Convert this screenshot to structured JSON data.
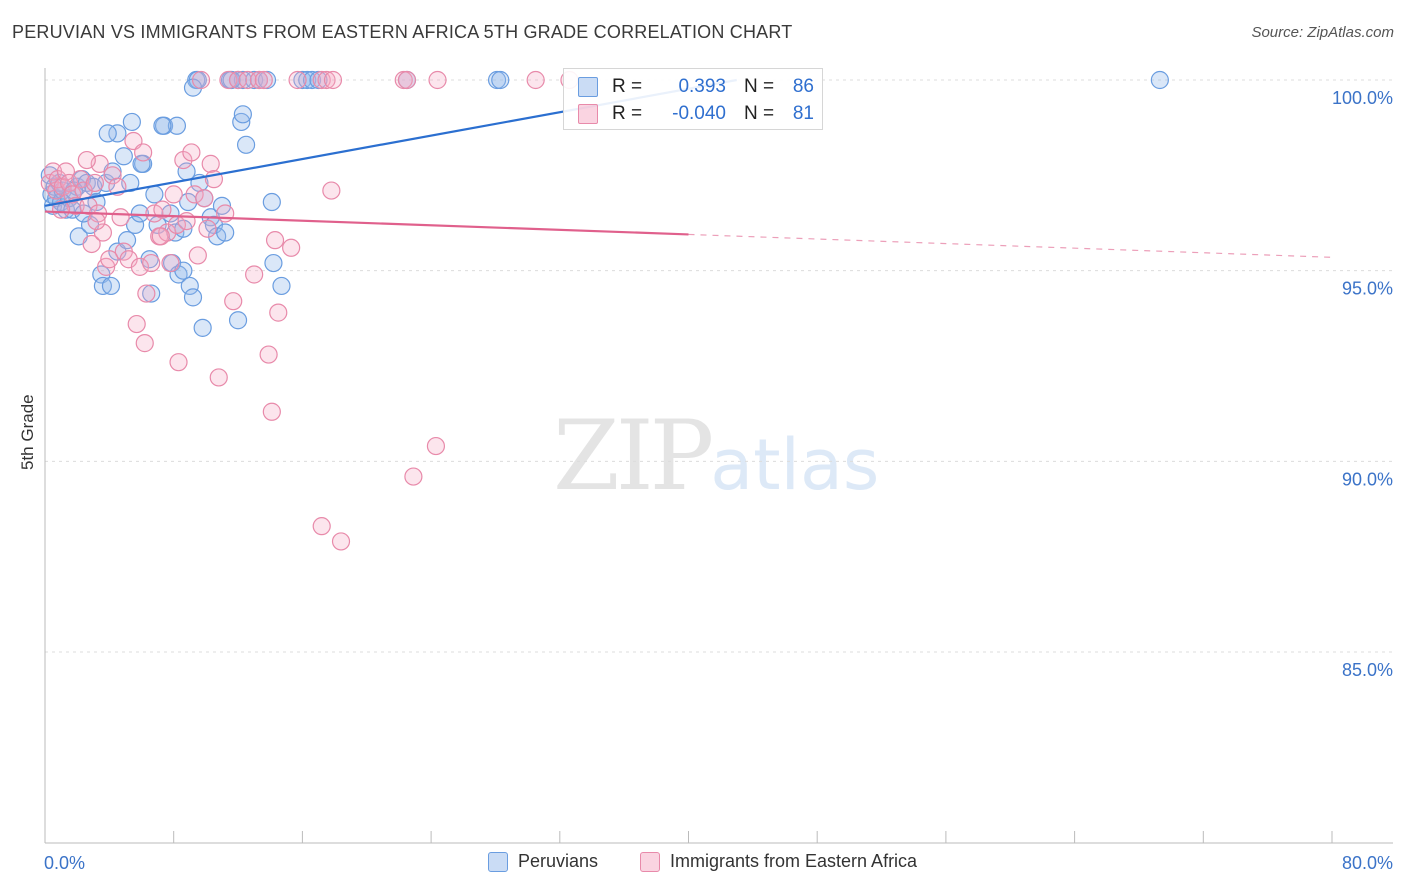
{
  "title": "PERUVIAN VS IMMIGRANTS FROM EASTERN AFRICA 5TH GRADE CORRELATION CHART",
  "source": "Source: ZipAtlas.com",
  "colors": {
    "blue": "#6a9de0",
    "blue_fill": "rgba(150,185,235,0.35)",
    "blue_line": "#2b6fd0",
    "pink": "#e88aaa",
    "pink_fill": "rgba(245,170,195,0.3)",
    "pink_line": "#e0608c",
    "axis_text": "#3b73c8"
  },
  "legend_stats": [
    {
      "r_label": "R =",
      "r_value": "0.393",
      "n_label": "N =",
      "n_value": "86"
    },
    {
      "r_label": "R =",
      "r_value": "-0.040",
      "n_label": "N =",
      "n_value": "81"
    }
  ],
  "watermark": {
    "zip": "ZIP",
    "atlas": "atlas"
  },
  "chart_data": {
    "type": "scatter",
    "title": "PERUVIAN VS IMMIGRANTS FROM EASTERN AFRICA 5TH GRADE CORRELATION CHART",
    "xlabel": "",
    "ylabel": "5th Grade",
    "xlim": [
      0,
      80
    ],
    "ylim": [
      80.5,
      100.8
    ],
    "x_tick_labels": [
      "0.0%",
      "80.0%"
    ],
    "y_ticks": [
      85,
      90,
      95,
      100
    ],
    "y_tick_labels": [
      "85.0%",
      "90.0%",
      "95.0%",
      "100.0%"
    ],
    "grid": true,
    "legend_position": "bottom",
    "series": [
      {
        "name": "Peruvians",
        "trend": {
          "x": [
            0,
            43
          ],
          "y": [
            96.7,
            100.0
          ]
        },
        "points": [
          [
            0.3,
            97.5
          ],
          [
            0.4,
            97.0
          ],
          [
            0.5,
            96.7
          ],
          [
            0.6,
            97.2
          ],
          [
            0.7,
            96.9
          ],
          [
            0.9,
            97.3
          ],
          [
            1.0,
            96.8
          ],
          [
            1.1,
            97.1
          ],
          [
            1.3,
            96.6
          ],
          [
            1.5,
            96.9
          ],
          [
            1.7,
            96.6
          ],
          [
            2.0,
            97.2
          ],
          [
            2.1,
            95.9
          ],
          [
            2.3,
            97.4
          ],
          [
            2.6,
            97.3
          ],
          [
            2.8,
            96.2
          ],
          [
            3.0,
            97.2
          ],
          [
            3.2,
            96.8
          ],
          [
            3.5,
            94.9
          ],
          [
            3.6,
            94.6
          ],
          [
            3.8,
            97.3
          ],
          [
            4.1,
            94.6
          ],
          [
            4.5,
            95.5
          ],
          [
            4.9,
            98.0
          ],
          [
            5.1,
            95.8
          ],
          [
            5.3,
            97.3
          ],
          [
            5.6,
            96.2
          ],
          [
            5.9,
            96.5
          ],
          [
            6.1,
            97.8
          ],
          [
            6.5,
            95.3
          ],
          [
            6.6,
            94.4
          ],
          [
            6.8,
            97.0
          ],
          [
            7.0,
            96.2
          ],
          [
            7.4,
            98.8
          ],
          [
            7.8,
            96.5
          ],
          [
            7.9,
            95.2
          ],
          [
            8.1,
            96.0
          ],
          [
            8.2,
            98.8
          ],
          [
            8.3,
            94.9
          ],
          [
            8.6,
            95.0
          ],
          [
            8.8,
            97.6
          ],
          [
            8.9,
            96.8
          ],
          [
            9.0,
            94.6
          ],
          [
            9.2,
            94.3
          ],
          [
            8.6,
            96.1
          ],
          [
            9.6,
            97.3
          ],
          [
            9.4,
            100.0
          ],
          [
            9.5,
            100.0
          ],
          [
            9.2,
            99.8
          ],
          [
            9.8,
            93.5
          ],
          [
            10.3,
            96.4
          ],
          [
            10.5,
            96.2
          ],
          [
            10.7,
            95.9
          ],
          [
            11.0,
            96.7
          ],
          [
            11.2,
            96.0
          ],
          [
            11.5,
            100.0
          ],
          [
            12.0,
            100.0
          ],
          [
            12.3,
            100.0
          ],
          [
            11.6,
            100.0
          ],
          [
            12.0,
            93.7
          ],
          [
            12.2,
            98.9
          ],
          [
            12.3,
            99.1
          ],
          [
            12.5,
            98.3
          ],
          [
            13.0,
            100.0
          ],
          [
            13.3,
            100.0
          ],
          [
            13.8,
            100.0
          ],
          [
            14.1,
            96.8
          ],
          [
            14.2,
            95.2
          ],
          [
            14.7,
            94.6
          ],
          [
            16.0,
            100.0
          ],
          [
            16.3,
            100.0
          ],
          [
            16.6,
            100.0
          ],
          [
            17.0,
            100.0
          ],
          [
            22.5,
            100.0
          ],
          [
            28.1,
            100.0
          ],
          [
            28.3,
            100.0
          ],
          [
            4.5,
            98.6
          ],
          [
            5.4,
            98.9
          ],
          [
            6.0,
            97.8
          ],
          [
            3.9,
            98.6
          ],
          [
            69.3,
            100.0
          ],
          [
            9.9,
            96.9
          ],
          [
            4.2,
            97.6
          ],
          [
            2.4,
            96.5
          ],
          [
            7.3,
            98.8
          ],
          [
            1.8,
            97.1
          ]
        ]
      },
      {
        "name": "Immigrants from Eastern Africa",
        "trend": {
          "x": [
            0,
            40
          ],
          "y": [
            96.55,
            95.95
          ]
        },
        "trend_dashed": {
          "x": [
            40,
            80
          ],
          "y": [
            95.95,
            95.35
          ]
        },
        "points": [
          [
            0.3,
            97.3
          ],
          [
            0.5,
            97.6
          ],
          [
            0.7,
            97.1
          ],
          [
            0.8,
            97.4
          ],
          [
            1.1,
            97.2
          ],
          [
            1.3,
            97.6
          ],
          [
            1.5,
            97.3
          ],
          [
            1.7,
            97.0
          ],
          [
            1.9,
            96.7
          ],
          [
            2.2,
            97.4
          ],
          [
            2.4,
            97.1
          ],
          [
            2.7,
            96.7
          ],
          [
            2.9,
            95.7
          ],
          [
            3.1,
            97.3
          ],
          [
            3.3,
            96.5
          ],
          [
            3.4,
            97.8
          ],
          [
            3.6,
            96.0
          ],
          [
            3.8,
            95.1
          ],
          [
            4.2,
            97.5
          ],
          [
            4.5,
            97.2
          ],
          [
            4.7,
            96.4
          ],
          [
            4.9,
            95.5
          ],
          [
            5.2,
            95.3
          ],
          [
            5.5,
            98.4
          ],
          [
            5.7,
            93.6
          ],
          [
            5.9,
            95.1
          ],
          [
            6.1,
            98.1
          ],
          [
            6.3,
            94.4
          ],
          [
            6.6,
            95.2
          ],
          [
            6.8,
            96.5
          ],
          [
            7.1,
            95.9
          ],
          [
            7.3,
            96.6
          ],
          [
            7.6,
            96.0
          ],
          [
            7.8,
            95.2
          ],
          [
            8.0,
            97.0
          ],
          [
            8.2,
            96.2
          ],
          [
            8.3,
            92.6
          ],
          [
            8.6,
            97.9
          ],
          [
            8.8,
            96.3
          ],
          [
            9.1,
            98.1
          ],
          [
            9.3,
            97.0
          ],
          [
            9.5,
            95.4
          ],
          [
            9.9,
            96.9
          ],
          [
            10.1,
            96.1
          ],
          [
            10.3,
            97.8
          ],
          [
            10.5,
            97.4
          ],
          [
            10.8,
            92.2
          ],
          [
            11.2,
            96.5
          ],
          [
            11.4,
            100.0
          ],
          [
            11.7,
            94.2
          ],
          [
            12.0,
            100.0
          ],
          [
            12.6,
            100.0
          ],
          [
            13.0,
            94.9
          ],
          [
            13.3,
            100.0
          ],
          [
            13.6,
            100.0
          ],
          [
            13.9,
            92.8
          ],
          [
            14.1,
            91.3
          ],
          [
            14.3,
            95.8
          ],
          [
            14.5,
            93.9
          ],
          [
            15.3,
            95.6
          ],
          [
            17.2,
            100.0
          ],
          [
            17.5,
            100.0
          ],
          [
            17.8,
            97.1
          ],
          [
            17.9,
            100.0
          ],
          [
            17.2,
            88.3
          ],
          [
            18.4,
            87.9
          ],
          [
            22.3,
            100.0
          ],
          [
            22.5,
            100.0
          ],
          [
            22.9,
            89.6
          ],
          [
            24.3,
            90.4
          ],
          [
            24.4,
            100.0
          ],
          [
            30.5,
            100.0
          ],
          [
            32.6,
            100.0
          ],
          [
            6.2,
            93.1
          ],
          [
            2.6,
            97.9
          ],
          [
            1.0,
            96.6
          ],
          [
            4.0,
            95.3
          ],
          [
            3.2,
            96.3
          ],
          [
            9.7,
            100.0
          ],
          [
            15.7,
            100.0
          ],
          [
            7.2,
            95.9
          ]
        ]
      }
    ]
  },
  "legend_bottom": [
    "Peruvians",
    "Immigrants from Eastern Africa"
  ]
}
